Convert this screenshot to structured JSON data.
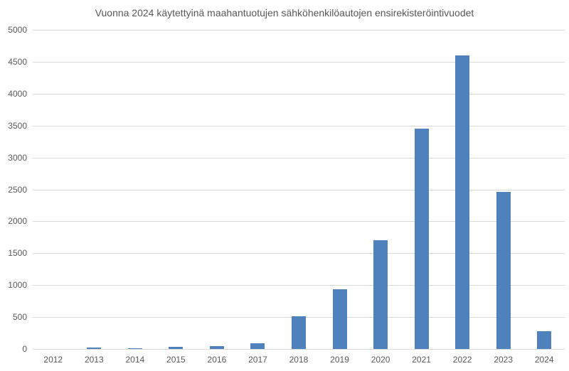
{
  "chart_data": {
    "type": "bar",
    "title": "Vuonna 2024 käytettyinä maahantuotujen sähköhenkilöautojen ensirekisteröintivuodet",
    "categories": [
      "2012",
      "2013",
      "2014",
      "2015",
      "2016",
      "2017",
      "2018",
      "2019",
      "2020",
      "2021",
      "2022",
      "2023",
      "2024"
    ],
    "values": [
      0,
      20,
      15,
      30,
      40,
      90,
      510,
      930,
      1700,
      3450,
      4600,
      2460,
      280
    ],
    "xlabel": "",
    "ylabel": "",
    "ylim": [
      0,
      5000
    ],
    "yticks": [
      0,
      500,
      1000,
      1500,
      2000,
      2500,
      3000,
      3500,
      4000,
      4500,
      5000
    ],
    "grid": "horizontal",
    "legend": "none",
    "colors": {
      "bar": "#4f81bd",
      "gridline": "#d9d9d9",
      "text": "#595959",
      "background": "#ffffff"
    }
  }
}
